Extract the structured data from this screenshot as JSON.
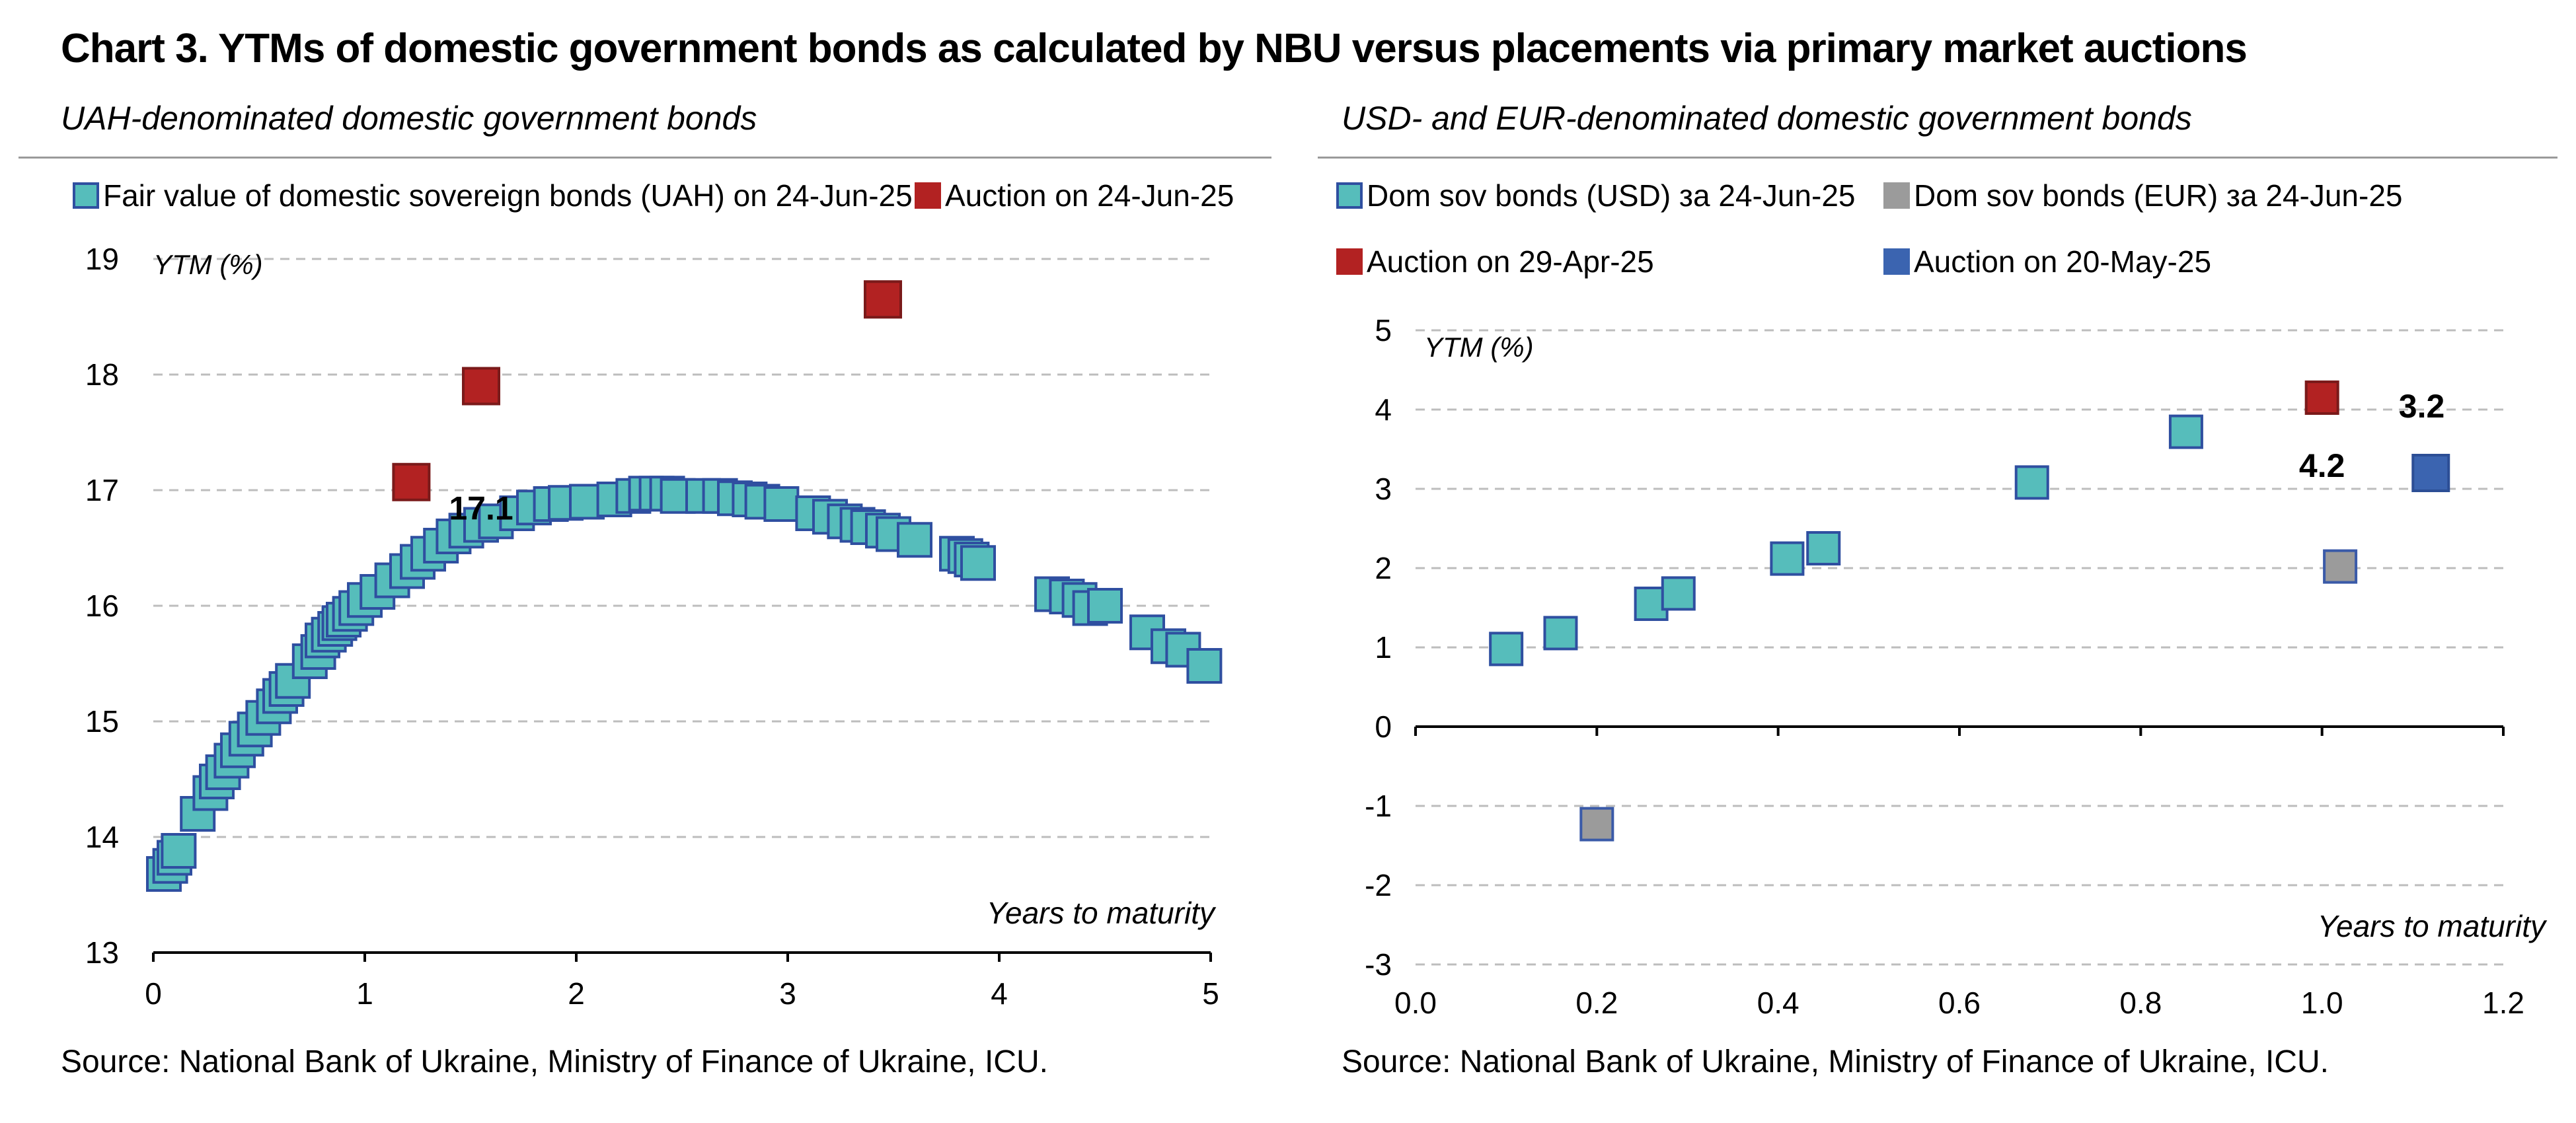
{
  "title": "Chart 3. YTMs of domestic government bonds as calculated by NBU versus placements via primary market auctions",
  "colors": {
    "teal": "#56bdbb",
    "teal_edge": "#2f4fa0",
    "red": "#b22222",
    "gray": "#9b9b9b",
    "blue": "#3b64b0",
    "grid": "#bdbdbd"
  },
  "chart_data": [
    {
      "type": "scatter",
      "subtitle": "UAH-denominated domestic government bonds",
      "source": "Source: National Bank of Ukraine, Ministry of Finance of Ukraine, ICU.",
      "xlabel": "Years to maturity",
      "ylabel": "YTM (%)",
      "xlim": [
        0,
        5
      ],
      "ylim": [
        13,
        19
      ],
      "xticks": [
        "0",
        "1",
        "2",
        "3",
        "4",
        "5"
      ],
      "yticks": [
        "13",
        "14",
        "15",
        "16",
        "17",
        "18",
        "19"
      ],
      "grid": "horizontal dashed",
      "legend_position": "top",
      "series": [
        {
          "name": "Fair value of domestic sovereign bonds (UAH) on 24-Jun-25",
          "color": "#56bdbb",
          "points": [
            [
              0.05,
              13.68
            ],
            [
              0.08,
              13.75
            ],
            [
              0.1,
              13.82
            ],
            [
              0.12,
              13.88
            ],
            [
              0.21,
              14.2
            ],
            [
              0.27,
              14.38
            ],
            [
              0.3,
              14.48
            ],
            [
              0.33,
              14.56
            ],
            [
              0.37,
              14.66
            ],
            [
              0.4,
              14.75
            ],
            [
              0.44,
              14.85
            ],
            [
              0.48,
              14.93
            ],
            [
              0.52,
              15.03
            ],
            [
              0.57,
              15.13
            ],
            [
              0.6,
              15.22
            ],
            [
              0.63,
              15.28
            ],
            [
              0.66,
              15.35
            ],
            [
              0.74,
              15.52
            ],
            [
              0.78,
              15.6
            ],
            [
              0.8,
              15.7
            ],
            [
              0.83,
              15.75
            ],
            [
              0.86,
              15.8
            ],
            [
              0.88,
              15.85
            ],
            [
              0.9,
              15.88
            ],
            [
              0.93,
              15.93
            ],
            [
              0.96,
              15.98
            ],
            [
              1.0,
              16.05
            ],
            [
              1.06,
              16.12
            ],
            [
              1.13,
              16.22
            ],
            [
              1.2,
              16.3
            ],
            [
              1.25,
              16.38
            ],
            [
              1.3,
              16.45
            ],
            [
              1.36,
              16.52
            ],
            [
              1.42,
              16.6
            ],
            [
              1.48,
              16.65
            ],
            [
              1.55,
              16.7
            ],
            [
              1.62,
              16.73
            ],
            [
              1.72,
              16.8
            ],
            [
              1.8,
              16.85
            ],
            [
              1.88,
              16.88
            ],
            [
              1.95,
              16.89
            ],
            [
              2.05,
              16.9
            ],
            [
              2.18,
              16.92
            ],
            [
              2.27,
              16.95
            ],
            [
              2.33,
              16.97
            ],
            [
              2.38,
              16.97
            ],
            [
              2.43,
              16.97
            ],
            [
              2.48,
              16.95
            ],
            [
              2.6,
              16.95
            ],
            [
              2.68,
              16.95
            ],
            [
              2.75,
              16.93
            ],
            [
              2.82,
              16.92
            ],
            [
              2.88,
              16.9
            ],
            [
              2.97,
              16.88
            ],
            [
              3.12,
              16.8
            ],
            [
              3.2,
              16.77
            ],
            [
              3.27,
              16.73
            ],
            [
              3.33,
              16.7
            ],
            [
              3.38,
              16.68
            ],
            [
              3.45,
              16.65
            ],
            [
              3.5,
              16.62
            ],
            [
              3.6,
              16.57
            ],
            [
              3.8,
              16.45
            ],
            [
              3.84,
              16.43
            ],
            [
              3.87,
              16.4
            ],
            [
              3.9,
              16.37
            ],
            [
              4.25,
              16.1
            ],
            [
              4.32,
              16.08
            ],
            [
              4.38,
              16.05
            ],
            [
              4.43,
              15.98
            ],
            [
              4.5,
              16.0
            ],
            [
              4.7,
              15.77
            ],
            [
              4.8,
              15.65
            ],
            [
              4.87,
              15.62
            ],
            [
              4.97,
              15.48
            ]
          ]
        },
        {
          "name": "Auction on 24-Jun-25",
          "color": "#b22222",
          "points": [
            [
              1.22,
              17.07
            ],
            [
              1.55,
              17.9
            ],
            [
              3.45,
              18.65
            ]
          ]
        }
      ],
      "annotations": [
        {
          "text": "17.1",
          "x": 1.55,
          "y": 16.85
        }
      ]
    },
    {
      "type": "scatter",
      "subtitle": "USD- and EUR-denominated domestic government bonds",
      "source": "Source: National Bank of Ukraine, Ministry of Finance of Ukraine, ICU.",
      "xlabel": "Years to maturity",
      "ylabel": "YTM (%)",
      "xlim": [
        0,
        1.2
      ],
      "ylim": [
        -3,
        5
      ],
      "xticks": [
        "0.0",
        "0.2",
        "0.4",
        "0.6",
        "0.8",
        "1.0",
        "1.2"
      ],
      "yticks": [
        "-3",
        "-2",
        "-1",
        "0",
        "1",
        "2",
        "3",
        "4",
        "5"
      ],
      "grid": "horizontal dashed",
      "legend_position": "top",
      "series": [
        {
          "name": "Dom sov bonds (USD) за 24-Jun-25",
          "color": "#56bdbb",
          "points": [
            [
              0.1,
              0.98
            ],
            [
              0.16,
              1.18
            ],
            [
              0.26,
              1.55
            ],
            [
              0.29,
              1.68
            ],
            [
              0.41,
              2.12
            ],
            [
              0.45,
              2.25
            ],
            [
              0.68,
              3.08
            ],
            [
              0.85,
              3.72
            ]
          ]
        },
        {
          "name": "Dom sov bonds (EUR) за 24-Jun-25",
          "color": "#9b9b9b",
          "points": [
            [
              0.2,
              -1.23
            ],
            [
              1.02,
              2.02
            ]
          ]
        },
        {
          "name": "Auction on 29-Apr-25",
          "color": "#b22222",
          "points": [
            [
              1.0,
              4.15
            ]
          ]
        },
        {
          "name": "Auction on 20-May-25",
          "color": "#3b64b0",
          "points": [
            [
              1.12,
              3.2
            ]
          ]
        }
      ],
      "annotations": [
        {
          "text": "3.2",
          "x": 1.11,
          "y": 4.05
        },
        {
          "text": "4.2",
          "x": 1.0,
          "y": 3.3
        }
      ]
    }
  ]
}
